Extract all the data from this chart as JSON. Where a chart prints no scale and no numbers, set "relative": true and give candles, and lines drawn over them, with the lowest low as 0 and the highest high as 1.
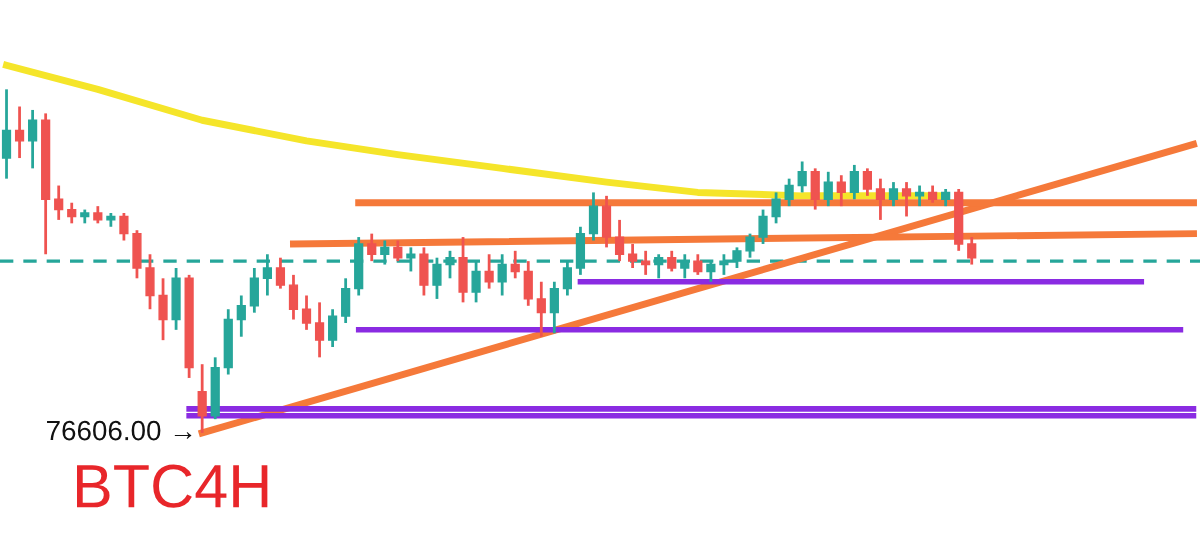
{
  "chart_data": {
    "type": "candlestick",
    "title": "BTC4H",
    "relative": true,
    "annotations": [
      "76606.00 →"
    ],
    "categories": [
      null,
      null,
      null,
      null,
      null,
      null,
      null,
      null,
      null,
      null,
      null,
      null,
      null,
      null,
      null,
      null,
      null,
      null,
      null,
      null,
      null,
      null,
      null,
      null,
      null,
      null,
      null,
      null,
      null,
      null,
      null,
      null,
      null,
      null,
      null,
      null,
      null,
      null,
      null,
      null,
      null,
      null,
      null,
      null,
      null,
      null,
      null,
      null,
      null,
      null,
      null,
      null,
      null,
      null,
      null,
      null,
      null,
      null,
      null,
      null,
      null,
      null,
      null,
      null,
      null,
      null,
      null,
      null,
      null,
      null,
      null,
      null,
      null,
      null,
      null,
      null,
      null,
      null,
      null,
      null,
      null,
      null,
      null,
      null,
      null,
      null,
      null,
      null,
      null,
      null,
      null,
      null
    ],
    "ohlc": [
      [
        0.8,
        1.0,
        0.74,
        0.88
      ],
      [
        0.88,
        0.95,
        0.8,
        0.85
      ],
      [
        0.85,
        0.94,
        0.77,
        0.91
      ],
      [
        0.91,
        0.93,
        0.52,
        0.68
      ],
      [
        0.68,
        0.72,
        0.62,
        0.65
      ],
      [
        0.65,
        0.67,
        0.61,
        0.63
      ],
      [
        0.63,
        0.65,
        0.61,
        0.64
      ],
      [
        0.64,
        0.66,
        0.61,
        0.62
      ],
      [
        0.62,
        0.64,
        0.6,
        0.63
      ],
      [
        0.63,
        0.64,
        0.56,
        0.58
      ],
      [
        0.58,
        0.59,
        0.45,
        0.48
      ],
      [
        0.48,
        0.52,
        0.36,
        0.4
      ],
      [
        0.4,
        0.45,
        0.27,
        0.33
      ],
      [
        0.33,
        0.48,
        0.3,
        0.45
      ],
      [
        0.45,
        0.46,
        0.16,
        0.19
      ],
      [
        0.12,
        0.2,
        0.0,
        0.05
      ],
      [
        0.05,
        0.22,
        0.04,
        0.19
      ],
      [
        0.19,
        0.36,
        0.17,
        0.33
      ],
      [
        0.33,
        0.4,
        0.28,
        0.37
      ],
      [
        0.37,
        0.48,
        0.35,
        0.45
      ],
      [
        0.45,
        0.52,
        0.4,
        0.48
      ],
      [
        0.48,
        0.51,
        0.42,
        0.43
      ],
      [
        0.43,
        0.46,
        0.33,
        0.36
      ],
      [
        0.36,
        0.4,
        0.3,
        0.32
      ],
      [
        0.32,
        0.38,
        0.22,
        0.27
      ],
      [
        0.27,
        0.36,
        0.25,
        0.34
      ],
      [
        0.34,
        0.45,
        0.32,
        0.42
      ],
      [
        0.42,
        0.57,
        0.4,
        0.55
      ],
      [
        0.55,
        0.58,
        0.5,
        0.52
      ],
      [
        0.52,
        0.56,
        0.49,
        0.54
      ],
      [
        0.54,
        0.56,
        0.5,
        0.51
      ],
      [
        0.51,
        0.54,
        0.47,
        0.52
      ],
      [
        0.52,
        0.54,
        0.4,
        0.43
      ],
      [
        0.43,
        0.51,
        0.39,
        0.49
      ],
      [
        0.49,
        0.53,
        0.45,
        0.51
      ],
      [
        0.51,
        0.57,
        0.38,
        0.41
      ],
      [
        0.41,
        0.5,
        0.38,
        0.47
      ],
      [
        0.47,
        0.52,
        0.42,
        0.44
      ],
      [
        0.44,
        0.52,
        0.4,
        0.49
      ],
      [
        0.49,
        0.53,
        0.45,
        0.47
      ],
      [
        0.47,
        0.5,
        0.37,
        0.39
      ],
      [
        0.39,
        0.44,
        0.28,
        0.35
      ],
      [
        0.35,
        0.44,
        0.29,
        0.42
      ],
      [
        0.42,
        0.5,
        0.4,
        0.48
      ],
      [
        0.48,
        0.6,
        0.46,
        0.58
      ],
      [
        0.58,
        0.7,
        0.56,
        0.66
      ],
      [
        0.66,
        0.69,
        0.54,
        0.57
      ],
      [
        0.57,
        0.62,
        0.5,
        0.52
      ],
      [
        0.52,
        0.55,
        0.48,
        0.5
      ],
      [
        0.5,
        0.53,
        0.46,
        0.49
      ],
      [
        0.49,
        0.52,
        0.45,
        0.51
      ],
      [
        0.51,
        0.53,
        0.47,
        0.48
      ],
      [
        0.48,
        0.52,
        0.45,
        0.5
      ],
      [
        0.5,
        0.52,
        0.46,
        0.47
      ],
      [
        0.47,
        0.5,
        0.44,
        0.49
      ],
      [
        0.49,
        0.52,
        0.46,
        0.5
      ],
      [
        0.5,
        0.54,
        0.48,
        0.53
      ],
      [
        0.53,
        0.58,
        0.51,
        0.57
      ],
      [
        0.57,
        0.65,
        0.55,
        0.63
      ],
      [
        0.63,
        0.7,
        0.61,
        0.68
      ],
      [
        0.68,
        0.74,
        0.66,
        0.72
      ],
      [
        0.72,
        0.79,
        0.7,
        0.76
      ],
      [
        0.76,
        0.77,
        0.65,
        0.68
      ],
      [
        0.68,
        0.76,
        0.66,
        0.73
      ],
      [
        0.73,
        0.75,
        0.66,
        0.7
      ],
      [
        0.7,
        0.78,
        0.68,
        0.76
      ],
      [
        0.76,
        0.77,
        0.69,
        0.71
      ],
      [
        0.71,
        0.74,
        0.62,
        0.68
      ],
      [
        0.68,
        0.73,
        0.66,
        0.71
      ],
      [
        0.71,
        0.73,
        0.63,
        0.69
      ],
      [
        0.69,
        0.72,
        0.66,
        0.7
      ],
      [
        0.7,
        0.72,
        0.67,
        0.68
      ],
      [
        0.68,
        0.71,
        0.66,
        0.7
      ],
      [
        0.7,
        0.71,
        0.53,
        0.55
      ],
      [
        0.55,
        0.57,
        0.49,
        0.51
      ],
      null,
      null,
      null,
      null,
      null,
      null,
      null,
      null,
      null,
      null,
      null,
      null,
      null,
      null,
      null,
      null,
      null
    ],
    "series": [
      {
        "type": "line",
        "color": "#f5e52a",
        "values": [
          1.07,
          null,
          null,
          null,
          null,
          null,
          null,
          1.0,
          null,
          null,
          null,
          null,
          null,
          null,
          null,
          0.91,
          null,
          null,
          null,
          null,
          null,
          null,
          null,
          0.85,
          null,
          null,
          null,
          null,
          null,
          null,
          0.81,
          null,
          null,
          null,
          null,
          null,
          null,
          null,
          0.77,
          null,
          null,
          null,
          null,
          null,
          null,
          null,
          0.73,
          null,
          null,
          null,
          null,
          null,
          null,
          0.7,
          null,
          null,
          null,
          null,
          null,
          null,
          null,
          0.69,
          null,
          null,
          null,
          null,
          null,
          null,
          null,
          0.69,
          null,
          null,
          0.69,
          null,
          null,
          null,
          null,
          null,
          null,
          null,
          null,
          null,
          null,
          null,
          null,
          null,
          null,
          null,
          null,
          null,
          null,
          null
        ]
      },
      {
        "type": "line",
        "color": "#f5793a",
        "values": [
          null,
          null,
          null,
          null,
          null,
          null,
          null,
          null,
          null,
          null,
          null,
          null,
          null,
          null,
          null,
          0.0,
          null,
          null,
          null,
          null,
          null,
          null,
          null,
          null,
          null,
          null,
          null,
          null,
          null,
          null,
          null,
          null,
          null,
          null,
          null,
          null,
          null,
          null,
          null,
          null,
          null,
          null,
          null,
          null,
          null,
          null,
          null,
          null,
          null,
          null,
          null,
          null,
          null,
          null,
          null,
          null,
          null,
          null,
          null,
          null,
          null,
          null,
          null,
          null,
          null,
          null,
          null,
          null,
          null,
          null,
          null,
          null,
          null,
          null,
          null,
          null,
          null,
          null,
          null,
          null,
          null,
          null,
          null,
          null,
          null,
          null,
          null,
          null,
          null,
          null,
          null,
          0.84
        ]
      },
      {
        "type": "line",
        "color": "#f5793a",
        "values": [
          null,
          null,
          null,
          null,
          null,
          null,
          null,
          null,
          null,
          null,
          null,
          null,
          null,
          null,
          null,
          null,
          null,
          null,
          null,
          null,
          null,
          null,
          null,
          null,
          null,
          null,
          null,
          0.67,
          null,
          null,
          null,
          null,
          null,
          null,
          null,
          null,
          null,
          null,
          null,
          null,
          null,
          null,
          null,
          null,
          null,
          null,
          null,
          null,
          null,
          null,
          null,
          null,
          null,
          null,
          null,
          null,
          null,
          null,
          null,
          null,
          null,
          null,
          null,
          null,
          null,
          null,
          null,
          null,
          null,
          null,
          null,
          null,
          null,
          null,
          null,
          null,
          null,
          null,
          null,
          null,
          null,
          null,
          null,
          null,
          null,
          null,
          null,
          null,
          null,
          null,
          null,
          0.67
        ]
      },
      {
        "type": "line",
        "color": "#f5793a",
        "values": [
          null,
          null,
          null,
          null,
          null,
          null,
          null,
          null,
          null,
          null,
          null,
          null,
          null,
          null,
          null,
          null,
          null,
          null,
          null,
          null,
          null,
          null,
          0.55,
          null,
          null,
          null,
          null,
          null,
          null,
          null,
          null,
          null,
          null,
          null,
          null,
          null,
          null,
          null,
          null,
          null,
          null,
          null,
          null,
          null,
          null,
          null,
          null,
          null,
          null,
          null,
          null,
          null,
          null,
          null,
          null,
          null,
          null,
          null,
          null,
          null,
          null,
          null,
          null,
          null,
          null,
          null,
          null,
          null,
          null,
          null,
          null,
          null,
          null,
          null,
          null,
          null,
          null,
          null,
          null,
          null,
          null,
          null,
          null,
          null,
          null,
          null,
          null,
          null,
          null,
          null,
          null,
          0.58
        ]
      },
      {
        "type": "line",
        "color": "#8a2be2",
        "values": [
          null,
          null,
          null,
          null,
          null,
          null,
          null,
          null,
          null,
          null,
          null,
          null,
          null,
          null,
          null,
          null,
          null,
          null,
          null,
          null,
          null,
          null,
          null,
          null,
          null,
          null,
          null,
          null,
          null,
          null,
          null,
          null,
          null,
          null,
          null,
          null,
          null,
          null,
          null,
          null,
          null,
          null,
          null,
          null,
          0.44,
          null,
          null,
          null,
          null,
          null,
          null,
          null,
          null,
          null,
          null,
          null,
          null,
          null,
          null,
          null,
          null,
          null,
          null,
          null,
          null,
          null,
          null,
          null,
          null,
          null,
          null,
          null,
          null,
          null,
          null,
          null,
          null,
          null,
          null,
          null,
          null,
          null,
          null,
          null,
          null,
          null,
          null,
          0.44,
          null,
          null,
          null,
          null
        ]
      },
      {
        "type": "line",
        "color": "#8a2be2",
        "values": [
          null,
          null,
          null,
          null,
          null,
          null,
          null,
          null,
          null,
          null,
          null,
          null,
          null,
          null,
          null,
          null,
          null,
          null,
          null,
          null,
          null,
          null,
          null,
          null,
          null,
          null,
          null,
          0.3,
          null,
          null,
          null,
          null,
          null,
          null,
          null,
          null,
          null,
          null,
          null,
          null,
          null,
          null,
          null,
          null,
          null,
          null,
          null,
          null,
          null,
          null,
          null,
          null,
          null,
          null,
          null,
          null,
          null,
          null,
          null,
          null,
          null,
          null,
          null,
          null,
          null,
          null,
          null,
          null,
          null,
          null,
          null,
          null,
          null,
          null,
          null,
          null,
          null,
          null,
          null,
          null,
          null,
          null,
          null,
          null,
          null,
          null,
          null,
          null,
          null,
          null,
          0.3,
          null
        ]
      },
      {
        "type": "line",
        "color": "#8a2be2",
        "values": [
          null,
          null,
          null,
          null,
          null,
          null,
          null,
          null,
          null,
          null,
          null,
          null,
          null,
          null,
          0.07,
          null,
          null,
          null,
          null,
          null,
          null,
          null,
          null,
          null,
          null,
          null,
          null,
          null,
          null,
          null,
          null,
          null,
          null,
          null,
          null,
          null,
          null,
          null,
          null,
          null,
          null,
          null,
          null,
          null,
          null,
          null,
          null,
          null,
          null,
          null,
          null,
          null,
          null,
          null,
          null,
          null,
          null,
          null,
          null,
          null,
          null,
          null,
          null,
          null,
          null,
          null,
          null,
          null,
          null,
          null,
          null,
          null,
          null,
          null,
          null,
          null,
          null,
          null,
          null,
          null,
          null,
          null,
          null,
          null,
          null,
          null,
          null,
          null,
          null,
          null,
          null,
          0.07
        ]
      },
      {
        "type": "line",
        "color": "#8a2be2",
        "values": [
          null,
          null,
          null,
          null,
          null,
          null,
          null,
          null,
          null,
          null,
          null,
          null,
          null,
          null,
          0.05,
          null,
          null,
          null,
          null,
          null,
          null,
          null,
          null,
          null,
          null,
          null,
          null,
          null,
          null,
          null,
          null,
          null,
          null,
          null,
          null,
          null,
          null,
          null,
          null,
          null,
          null,
          null,
          null,
          null,
          null,
          null,
          null,
          null,
          null,
          null,
          null,
          null,
          null,
          null,
          null,
          null,
          null,
          null,
          null,
          null,
          null,
          null,
          null,
          null,
          null,
          null,
          null,
          null,
          null,
          null,
          null,
          null,
          null,
          null,
          null,
          null,
          null,
          null,
          null,
          null,
          null,
          null,
          null,
          null,
          null,
          null,
          null,
          null,
          null,
          null,
          null,
          0.05
        ]
      }
    ],
    "ref_lines": [
      {
        "axis": "y",
        "value": 0.5,
        "color": "#26a69a",
        "line_style": "dashed"
      }
    ]
  }
}
